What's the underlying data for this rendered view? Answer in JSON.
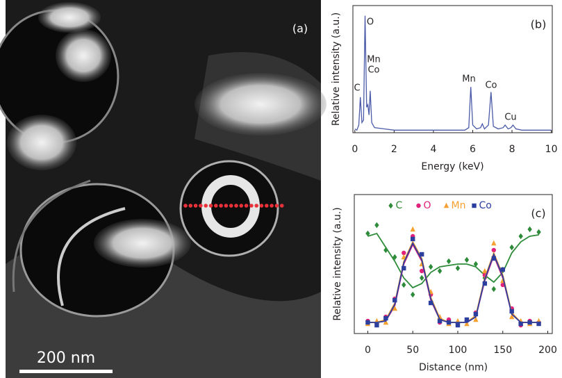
{
  "panel_a": {
    "label": "(a)",
    "scale_bar": "200 nm"
  },
  "chart_data": [
    {
      "type": "line",
      "panel_label": "(b)",
      "xlabel": "Energy (keV)",
      "ylabel": "Relative intensity (a.u.)",
      "x": [
        0,
        0.1,
        0.2,
        0.28,
        0.36,
        0.44,
        0.52,
        0.6,
        0.66,
        0.72,
        0.78,
        0.86,
        1.0,
        1.5,
        2,
        3,
        4,
        5,
        5.6,
        5.8,
        5.9,
        6.0,
        6.2,
        6.4,
        6.49,
        6.6,
        6.8,
        6.93,
        7.05,
        7.3,
        7.55,
        7.65,
        7.8,
        7.95,
        8.05,
        8.2,
        8.5,
        9,
        10
      ],
      "values": [
        3,
        2,
        6,
        28,
        8,
        10,
        92,
        20,
        22,
        14,
        33,
        8,
        4,
        3,
        2,
        2,
        2,
        2,
        2,
        4,
        36,
        6,
        3,
        4,
        7,
        3,
        6,
        32,
        5,
        3,
        4,
        6,
        3,
        4,
        6,
        3,
        2,
        2,
        2
      ],
      "color": "#4a5aa8",
      "annotations": [
        "O",
        "Mn",
        "Co",
        "C",
        "Mn",
        "Co",
        "Cu"
      ],
      "xlim": [
        -0.1,
        10.05
      ],
      "ylim": [
        0,
        100
      ],
      "xticks": [
        0,
        2,
        4,
        6,
        8,
        10
      ]
    },
    {
      "type": "scatter",
      "panel_label": "(c)",
      "xlabel": "Distance (nm)",
      "ylabel": "Relative intensity (a.u.)",
      "x": [
        0,
        10,
        20,
        30,
        40,
        50,
        60,
        70,
        80,
        90,
        100,
        110,
        120,
        130,
        140,
        150,
        160,
        170,
        180,
        190
      ],
      "series": [
        {
          "name": "C",
          "color": "#2e8b3a",
          "marker": "diamond",
          "values": [
            72,
            78,
            60,
            55,
            35,
            28,
            40,
            48,
            45,
            52,
            47,
            53,
            50,
            40,
            32,
            46,
            62,
            70,
            75,
            73
          ],
          "fit": [
            70,
            72,
            62,
            52,
            40,
            33,
            36,
            44,
            48,
            49,
            50,
            50,
            48,
            42,
            37,
            44,
            58,
            66,
            70,
            71
          ]
        },
        {
          "name": "O",
          "color": "#e0207a",
          "marker": "circle",
          "values": [
            9,
            7,
            12,
            25,
            58,
            70,
            45,
            28,
            8,
            10,
            7,
            9,
            15,
            42,
            60,
            35,
            18,
            6,
            9,
            8
          ],
          "fit": [
            8,
            8,
            9,
            20,
            50,
            64,
            52,
            24,
            10,
            8,
            8,
            8,
            12,
            38,
            56,
            40,
            14,
            8,
            8,
            8
          ]
        },
        {
          "name": "Mn",
          "color": "#f5a030",
          "marker": "triangle",
          "values": [
            7,
            9,
            8,
            18,
            55,
            75,
            50,
            30,
            12,
            7,
            9,
            7,
            10,
            45,
            65,
            38,
            12,
            9,
            7,
            9
          ],
          "fit": [
            8,
            8,
            10,
            22,
            52,
            66,
            54,
            26,
            11,
            8,
            8,
            8,
            13,
            40,
            58,
            42,
            15,
            8,
            8,
            8
          ]
        },
        {
          "name": "Co",
          "color": "#2c3e9e",
          "marker": "square",
          "values": [
            8,
            6,
            11,
            24,
            47,
            68,
            57,
            22,
            9,
            8,
            6,
            10,
            14,
            36,
            54,
            46,
            16,
            7,
            8,
            7
          ],
          "fit": [
            8,
            8,
            9,
            21,
            51,
            65,
            53,
            25,
            10,
            8,
            8,
            8,
            12,
            39,
            57,
            41,
            14,
            8,
            8,
            8
          ]
        }
      ],
      "legend": "upper center",
      "xlim": [
        -15,
        205
      ],
      "ylim": [
        0,
        100
      ],
      "xticks": [
        0,
        50,
        100,
        150,
        200
      ]
    }
  ]
}
